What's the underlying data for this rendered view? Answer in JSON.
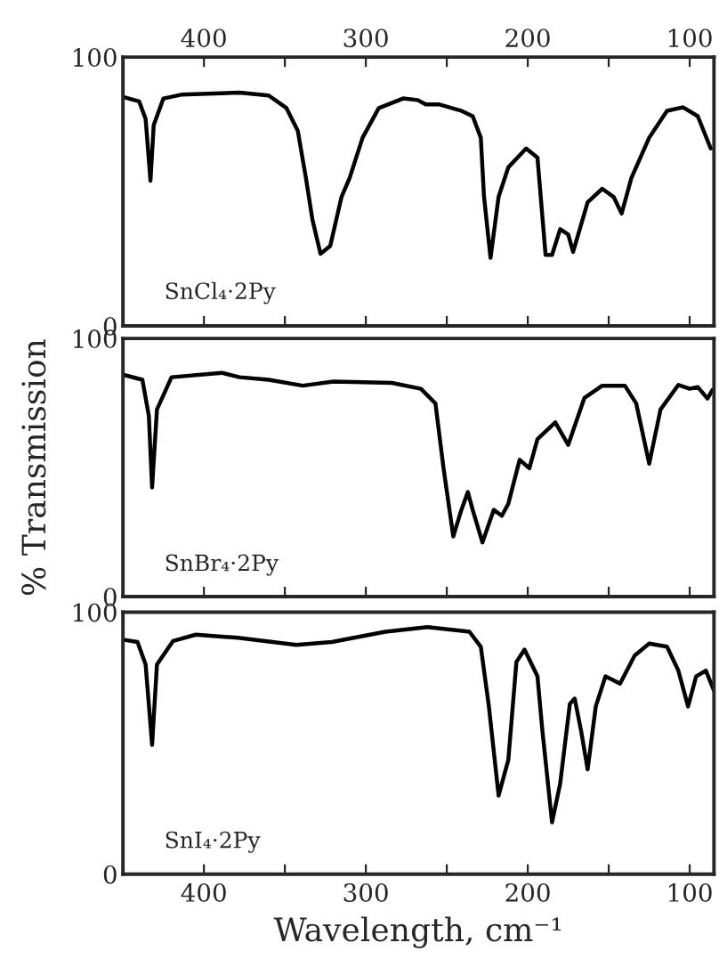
{
  "chart_data": [
    {
      "type": "line",
      "xlim": [
        450,
        85
      ],
      "xticks": [
        {
          "value": 400,
          "label": null
        },
        {
          "value": 350,
          "label": null
        },
        {
          "value": 300,
          "label": null
        },
        {
          "value": 250,
          "label": null
        },
        {
          "value": 200,
          "label": null
        },
        {
          "value": 150,
          "label": null
        },
        {
          "value": 100,
          "label": null
        }
      ],
      "x2lim": [
        450,
        85
      ],
      "x2ticks": [
        400,
        {
          "value": 350,
          "label": null
        },
        300,
        {
          "value": 250,
          "label": null
        },
        200,
        {
          "value": 150,
          "label": null
        },
        100
      ],
      "ylim": [
        0,
        100
      ],
      "yticks": [
        0,
        100
      ],
      "tick_labels": "y",
      "grid": false,
      "annotations": [
        "SnCl₄·2Py"
      ],
      "series": [
        {
          "color": "#000000",
          "x": [
            449,
            440,
            436,
            433,
            431,
            425,
            414,
            378,
            360,
            349,
            342,
            337,
            333,
            328,
            322,
            315,
            310,
            302,
            292,
            277,
            268,
            263,
            255,
            241,
            234,
            229,
            227,
            223,
            218,
            212,
            201,
            194,
            189,
            185,
            180,
            175,
            172,
            163,
            154,
            147,
            142,
            136,
            125,
            114,
            104,
            95,
            87
          ],
          "values": [
            85,
            83.5,
            77,
            54,
            74.7,
            84.6,
            86,
            86.8,
            85.7,
            81,
            72.5,
            55,
            39.6,
            26.8,
            29.7,
            48,
            55,
            70,
            81,
            84.6,
            84,
            82.4,
            82.4,
            80,
            78,
            70,
            48,
            25.3,
            48,
            59,
            66,
            62.6,
            26.4,
            26.4,
            36,
            34,
            27.5,
            46,
            51,
            48,
            41.8,
            55,
            70,
            80,
            81.3,
            78,
            66
          ]
        }
      ]
    },
    {
      "type": "line",
      "xlim": [
        450,
        85
      ],
      "xticks": [
        {
          "value": 400,
          "label": null
        },
        {
          "value": 350,
          "label": null
        },
        {
          "value": 300,
          "label": null
        },
        {
          "value": 250,
          "label": null
        },
        {
          "value": 200,
          "label": null
        },
        {
          "value": 150,
          "label": null
        },
        {
          "value": 100,
          "label": null
        }
      ],
      "ylim": [
        0,
        100
      ],
      "yticks": [
        0,
        100
      ],
      "tick_labels": "y",
      "grid": false,
      "ylabel": "% Transmission",
      "annotations": [
        "SnBr₄·2Py"
      ],
      "series": [
        {
          "color": "#000000",
          "x": [
            449,
            438,
            434,
            432,
            429,
            420,
            389,
            378,
            360,
            339,
            320,
            284,
            266,
            257,
            252,
            246,
            241,
            237,
            234,
            228,
            221,
            216,
            212,
            205,
            199,
            194,
            183,
            175,
            165,
            154,
            140,
            133,
            125,
            118,
            107,
            100,
            95,
            89,
            86
          ],
          "values": [
            85.8,
            84,
            70,
            42.3,
            72.5,
            85,
            86.7,
            85,
            84,
            81.7,
            83.3,
            82.8,
            80.5,
            74.8,
            49.7,
            23.3,
            33.6,
            40.5,
            33.6,
            21,
            33.6,
            31.3,
            36,
            53,
            49.7,
            61,
            67.5,
            58.8,
            77,
            81.7,
            81.7,
            74.8,
            51.5,
            72.5,
            82,
            80.5,
            81.2,
            76.7,
            80
          ]
        }
      ]
    },
    {
      "type": "line",
      "xlim": [
        450,
        85
      ],
      "xticks": [
        400,
        {
          "value": 350,
          "label": null
        },
        300,
        {
          "value": 250,
          "label": null
        },
        200,
        {
          "value": 150,
          "label": null
        },
        100
      ],
      "ylim": [
        0,
        100
      ],
      "yticks": [
        0,
        100
      ],
      "grid": false,
      "xlabel": "Wavelength, cm⁻¹",
      "annotations": [
        "SnI₄·2Py"
      ],
      "series": [
        {
          "color": "#000000",
          "x": [
            450,
            441,
            436,
            432,
            429,
            419,
            405,
            379,
            343,
            321,
            288,
            262,
            236,
            229,
            224,
            218,
            212,
            207,
            202,
            194,
            191,
            185,
            180,
            174,
            171,
            167,
            163,
            158,
            152,
            143,
            134,
            125,
            114,
            107,
            101,
            96,
            90,
            85
          ],
          "values": [
            89.5,
            88.6,
            80,
            49.3,
            80,
            89,
            91.4,
            90.2,
            87.5,
            88.6,
            92.5,
            94.3,
            92.5,
            86.8,
            64,
            30,
            43.6,
            81,
            85.7,
            75.5,
            55,
            19.8,
            34.5,
            65,
            67,
            54.5,
            40,
            64,
            75.5,
            72.7,
            83.4,
            88,
            86.8,
            77.7,
            64,
            75.5,
            77.7,
            70
          ]
        }
      ]
    }
  ]
}
